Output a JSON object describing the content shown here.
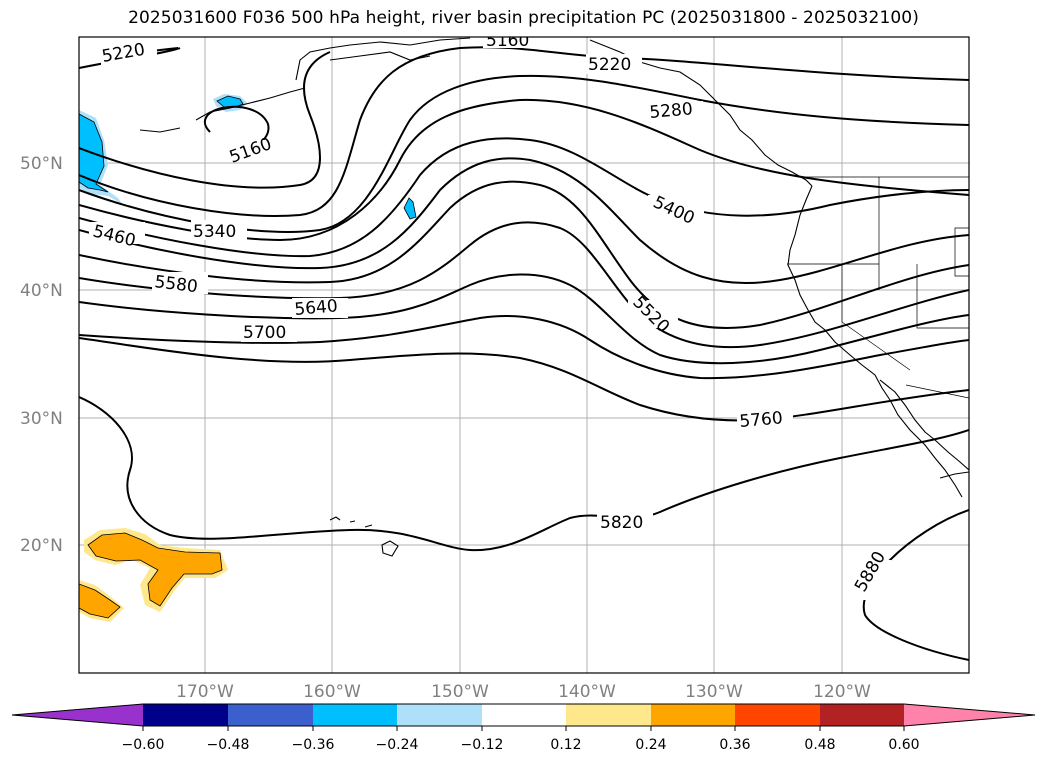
{
  "title": "2025031600 F036 500 hPa height, river basin precipitation PC (2025031800 - 2025032100)",
  "lat_labels": [
    "50°N",
    "40°N",
    "30°N",
    "20°N"
  ],
  "lon_labels": [
    "170°W",
    "160°W",
    "150°W",
    "140°W",
    "130°W",
    "120°W"
  ],
  "contour_labels": [
    "5220",
    "5160",
    "5160",
    "5220",
    "5280",
    "5340",
    "5400",
    "5460",
    "5520",
    "5580",
    "5640",
    "5700",
    "5760",
    "5820",
    "5880"
  ],
  "colorbar": {
    "ticks": [
      "−0.60",
      "−0.48",
      "−0.36",
      "−0.24",
      "−0.12",
      "0.12",
      "0.24",
      "0.36",
      "0.48",
      "0.60"
    ],
    "colors": [
      "#9932cc",
      "#00008b",
      "#3b5fcd",
      "#00bfff",
      "#afe0fa",
      "#ffffff",
      "#ffe78c",
      "#ffa500",
      "#ff4500",
      "#b22222",
      "#ff82ab"
    ]
  },
  "colors": {
    "contour": "#000000",
    "grid": "#b0b0b0",
    "coast": "#000000",
    "neg_fill": "#00bfff",
    "neg_fill_light": "#afe0fa",
    "pos_fill": "#ffa500",
    "pos_fill_light": "#ffe78c"
  }
}
